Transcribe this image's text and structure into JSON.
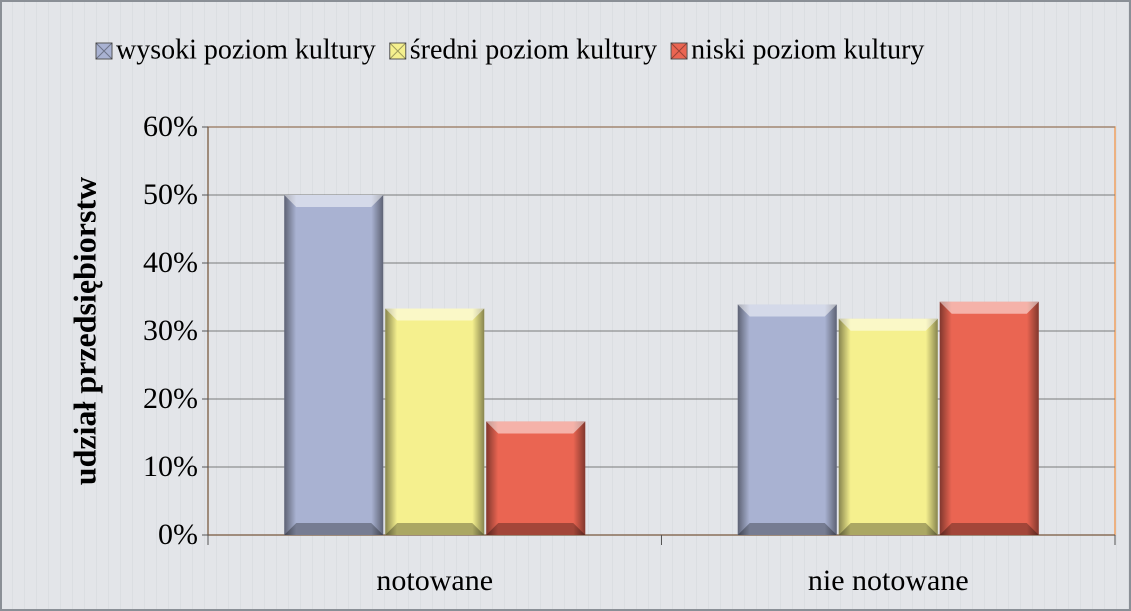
{
  "chart_data": {
    "type": "bar",
    "y_label": "udział przedsiębiorstw",
    "categories": [
      "notowane",
      "nie notowane"
    ],
    "series": [
      {
        "name": "wysoki poziom kultury",
        "color": "#a9b2d2",
        "values": [
          50,
          33.9
        ]
      },
      {
        "name": "średni poziom kultury",
        "color": "#f5f08e",
        "values": [
          33.3,
          31.8
        ]
      },
      {
        "name": "niski poziom kultury",
        "color": "#ea6552",
        "values": [
          16.7,
          34.3
        ]
      }
    ],
    "ylim": [
      0,
      60
    ],
    "yticks": [
      {
        "value": 0,
        "label": "0%"
      },
      {
        "value": 10,
        "label": "10%"
      },
      {
        "value": 20,
        "label": "20%"
      },
      {
        "value": 30,
        "label": "30%"
      },
      {
        "value": 40,
        "label": "40%"
      },
      {
        "value": 50,
        "label": "50%"
      },
      {
        "value": 60,
        "label": "60%"
      }
    ],
    "grid": true
  }
}
